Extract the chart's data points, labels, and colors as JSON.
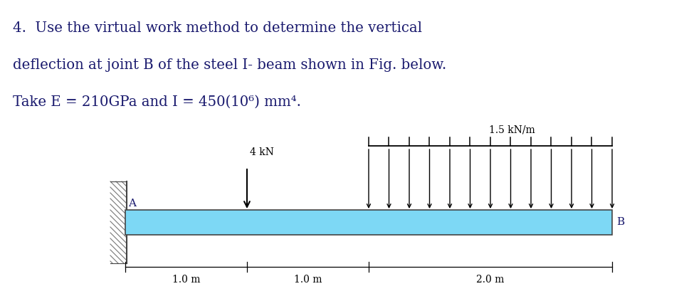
{
  "bg_color": "#ffffff",
  "text_color": "#1a1a6e",
  "beam_color": "#7dd8f5",
  "beam_outline": "#444444",
  "wall_hatch_color": "#888888",
  "point_load_label": "4 kN",
  "dist_load_label": "1.5 kN/m",
  "label_A": "A",
  "label_B": "B",
  "dim_labels": [
    "1.0 m",
    "1.0 m",
    "2.0 m"
  ],
  "dist_load_num_arrows": 13,
  "title_line1": "4.  Use the virtual work method to determine the vertical",
  "title_line2": "deflection at joint B of the steel I- beam shown in Fig. below.",
  "title_line3": "Take E = 210GPa and I = 450(10⁶) mm⁴."
}
